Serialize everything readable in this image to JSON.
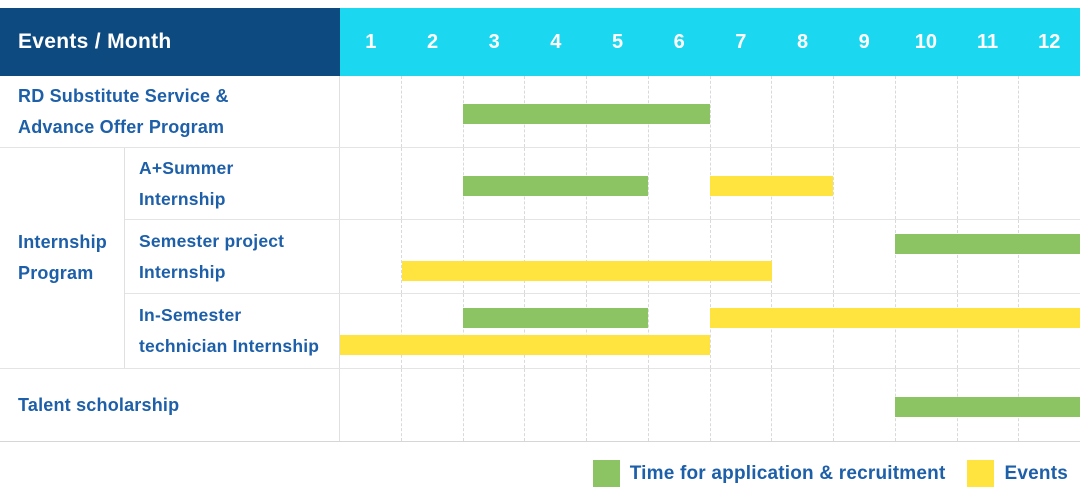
{
  "header": {
    "corner_label": "Events / Month",
    "months": [
      "1",
      "2",
      "3",
      "4",
      "5",
      "6",
      "7",
      "8",
      "9",
      "10",
      "11",
      "12"
    ]
  },
  "colors": {
    "header_navy": "#0D4A80",
    "header_cyan": "#1BD7EF",
    "bar_green": "#8CC464",
    "bar_yellow": "#FFE33E",
    "label_blue": "#1D5FA8"
  },
  "rows": [
    {
      "label_lines": [
        "RD Substitute Service &",
        "Advance Offer Program"
      ]
    },
    {
      "label_lines": [
        "A+Summer",
        "Internship"
      ]
    },
    {
      "label_lines": [
        "Semester project",
        "Internship"
      ]
    },
    {
      "label_lines": [
        "In-Semester",
        "technician Internship"
      ]
    },
    {
      "label_lines": [
        "Talent scholarship"
      ]
    }
  ],
  "group": {
    "label_lines": [
      "Internship",
      "Program"
    ]
  },
  "legend": [
    {
      "label": "Time for application & recruitment",
      "color": "#8CC464"
    },
    {
      "label": "Events",
      "color": "#FFE33E"
    }
  ],
  "chart_data": {
    "type": "bar",
    "subtype": "gantt-schedule",
    "title": "Events / Month",
    "x_axis": {
      "label": "Month",
      "ticks": [
        1,
        2,
        3,
        4,
        5,
        6,
        7,
        8,
        9,
        10,
        11,
        12
      ],
      "range": [
        1,
        12
      ]
    },
    "legend_position": "bottom-right",
    "grid": "dashed-vertical",
    "series": [
      {
        "name": "Time for application & recruitment",
        "color": "#8CC464"
      },
      {
        "name": "Events",
        "color": "#FFE33E"
      }
    ],
    "rows": [
      {
        "group": "",
        "label": "RD Substitute Service & Advance Offer Program",
        "bars": [
          {
            "series": 0,
            "start_month": 3,
            "end_month": 6,
            "track": "center"
          }
        ]
      },
      {
        "group": "Internship Program",
        "label": "A+Summer Internship",
        "bars": [
          {
            "series": 0,
            "start_month": 3,
            "end_month": 5,
            "track": "center"
          },
          {
            "series": 1,
            "start_month": 7,
            "end_month": 8,
            "track": "center"
          }
        ]
      },
      {
        "group": "Internship Program",
        "label": "Semester project Internship",
        "bars": [
          {
            "series": 0,
            "start_month": 10,
            "end_month": 12,
            "track": "upper"
          },
          {
            "series": 1,
            "start_month": 2,
            "end_month": 7,
            "track": "lower"
          }
        ]
      },
      {
        "group": "Internship Program",
        "label": "In-Semester technician Internship",
        "bars": [
          {
            "series": 0,
            "start_month": 3,
            "end_month": 5,
            "track": "upper"
          },
          {
            "series": 1,
            "start_month": 7,
            "end_month": 12,
            "track": "upper"
          },
          {
            "series": 1,
            "start_month": 1,
            "end_month": 6,
            "track": "lower"
          }
        ]
      },
      {
        "group": "",
        "label": "Talent scholarship",
        "bars": [
          {
            "series": 0,
            "start_month": 10,
            "end_month": 12,
            "track": "center"
          }
        ]
      }
    ]
  }
}
